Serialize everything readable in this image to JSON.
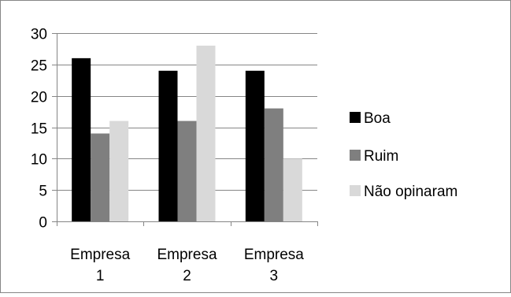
{
  "chart_data": {
    "type": "bar",
    "categories": [
      [
        "Empresa",
        "1"
      ],
      [
        "Empresa",
        "2"
      ],
      [
        "Empresa",
        "3"
      ]
    ],
    "series": [
      {
        "name": "Boa",
        "values": [
          26,
          24,
          24
        ],
        "color": "#000000"
      },
      {
        "name": "Ruim",
        "values": [
          14,
          16,
          18
        ],
        "color": "#7f7f7f"
      },
      {
        "name": "Não opinaram",
        "values": [
          16,
          28,
          10
        ],
        "color": "#d9d9d9"
      }
    ],
    "ylim": [
      0,
      30
    ],
    "yticks": [
      "0",
      "5",
      "10",
      "15",
      "20",
      "25",
      "30"
    ],
    "grid": true,
    "legend_position": "right"
  }
}
